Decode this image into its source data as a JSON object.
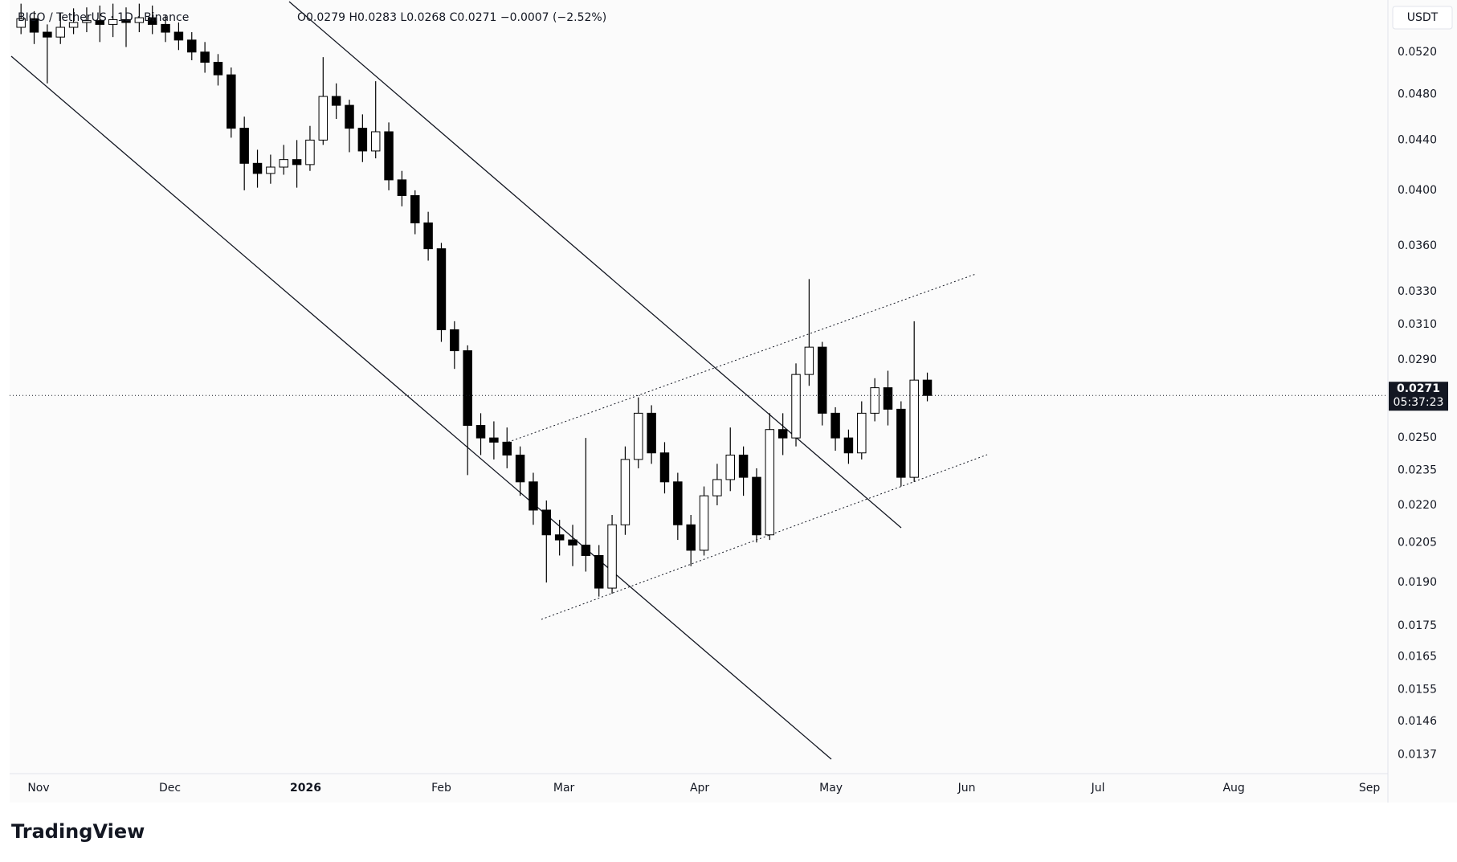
{
  "chart_data": {
    "type": "candlestick",
    "title": "BICO / TetherUS · 1D · Binance",
    "ohlc_text": "O0.0279 H0.0283 L0.0268 C0.0271 −0.0007 (−2.52%)",
    "currency": "USDT",
    "countdown": "05:37:23",
    "brand": "TradingView",
    "log_scale": true,
    "grid": false,
    "up_color": "#ffffff",
    "down_color": "#000000",
    "edge_color": "#000000",
    "x": [
      -4,
      -1,
      2,
      5,
      8,
      11,
      14,
      17,
      20,
      23,
      26,
      29,
      32,
      35,
      38,
      41,
      44,
      47,
      50,
      53,
      56,
      59,
      62,
      65,
      68,
      71,
      74,
      77,
      80,
      83,
      86,
      89,
      92,
      95,
      98,
      101,
      104,
      107,
      110,
      113,
      116,
      119,
      122,
      125,
      128,
      131,
      134,
      137,
      140,
      143,
      146,
      149,
      152,
      155,
      158,
      161,
      164,
      167,
      170,
      173,
      176,
      179,
      182,
      185,
      188,
      191,
      194,
      197,
      200,
      203
    ],
    "open": [
      0.0545,
      0.0554,
      0.054,
      0.0535,
      0.0545,
      0.055,
      0.0552,
      0.0548,
      0.0553,
      0.055,
      0.0555,
      0.0548,
      0.054,
      0.0532,
      0.052,
      0.051,
      0.0498,
      0.045,
      0.0421,
      0.0413,
      0.0418,
      0.0424,
      0.042,
      0.044,
      0.0478,
      0.047,
      0.045,
      0.0431,
      0.0447,
      0.0408,
      0.0396,
      0.0376,
      0.0358,
      0.0307,
      0.0295,
      0.0256,
      0.025,
      0.0248,
      0.0242,
      0.023,
      0.0218,
      0.0208,
      0.0206,
      0.0204,
      0.02,
      0.0188,
      0.0212,
      0.024,
      0.0262,
      0.0243,
      0.023,
      0.0212,
      0.0202,
      0.0224,
      0.0231,
      0.0242,
      0.0232,
      0.0208,
      0.0254,
      0.025,
      0.0282,
      0.0297,
      0.0262,
      0.025,
      0.0243,
      0.0262,
      0.0275,
      0.0264,
      0.0232,
      0.0279
    ],
    "high": [
      0.057,
      0.0562,
      0.0548,
      0.056,
      0.0565,
      0.0566,
      0.0568,
      0.057,
      0.0566,
      0.057,
      0.0568,
      0.0558,
      0.055,
      0.054,
      0.053,
      0.0518,
      0.0505,
      0.046,
      0.0432,
      0.0428,
      0.0436,
      0.044,
      0.0452,
      0.0515,
      0.049,
      0.0475,
      0.0462,
      0.0492,
      0.0455,
      0.0415,
      0.04,
      0.0384,
      0.0362,
      0.0312,
      0.0298,
      0.0262,
      0.0258,
      0.0255,
      0.0246,
      0.0234,
      0.0222,
      0.0214,
      0.0212,
      0.025,
      0.0204,
      0.0216,
      0.0246,
      0.027,
      0.0266,
      0.0248,
      0.0234,
      0.0216,
      0.0228,
      0.0238,
      0.0255,
      0.0246,
      0.0236,
      0.0262,
      0.0262,
      0.0288,
      0.0338,
      0.03,
      0.0265,
      0.0254,
      0.0268,
      0.028,
      0.0284,
      0.0268,
      0.0312,
      0.0283
    ],
    "low": [
      0.0538,
      0.0528,
      0.049,
      0.0528,
      0.0538,
      0.054,
      0.053,
      0.0535,
      0.0525,
      0.054,
      0.0538,
      0.053,
      0.0522,
      0.0512,
      0.05,
      0.0488,
      0.0442,
      0.04,
      0.0402,
      0.0405,
      0.0412,
      0.0402,
      0.0415,
      0.0436,
      0.0458,
      0.043,
      0.0422,
      0.0425,
      0.04,
      0.0388,
      0.0368,
      0.035,
      0.03,
      0.0285,
      0.0233,
      0.0242,
      0.024,
      0.0236,
      0.0224,
      0.0212,
      0.019,
      0.02,
      0.0196,
      0.0194,
      0.0185,
      0.0186,
      0.0208,
      0.0236,
      0.0238,
      0.0225,
      0.0206,
      0.0196,
      0.02,
      0.022,
      0.0226,
      0.0224,
      0.0205,
      0.0206,
      0.0242,
      0.0246,
      0.0276,
      0.0256,
      0.0244,
      0.0238,
      0.024,
      0.0258,
      0.0256,
      0.0228,
      0.023,
      0.0268
    ],
    "close": [
      0.0554,
      0.054,
      0.0535,
      0.0545,
      0.055,
      0.0552,
      0.0548,
      0.0553,
      0.055,
      0.0555,
      0.0548,
      0.054,
      0.0532,
      0.052,
      0.051,
      0.0498,
      0.045,
      0.0421,
      0.0413,
      0.0418,
      0.0424,
      0.042,
      0.044,
      0.0478,
      0.047,
      0.045,
      0.0431,
      0.0447,
      0.0408,
      0.0396,
      0.0376,
      0.0358,
      0.0307,
      0.0295,
      0.0256,
      0.025,
      0.0248,
      0.0242,
      0.023,
      0.0218,
      0.0208,
      0.0206,
      0.0204,
      0.02,
      0.0188,
      0.0212,
      0.024,
      0.0262,
      0.0243,
      0.023,
      0.0212,
      0.0202,
      0.0224,
      0.0231,
      0.0242,
      0.0232,
      0.0208,
      0.0254,
      0.025,
      0.0282,
      0.0297,
      0.0262,
      0.025,
      0.0243,
      0.0262,
      0.0275,
      0.0264,
      0.0232,
      0.0279,
      0.0271
    ],
    "xlim": [
      -6.6,
      308.2
    ],
    "xticks": [
      {
        "value": 0,
        "label": "Nov"
      },
      {
        "value": 30,
        "label": "Dec"
      },
      {
        "value": 61,
        "label": "2026"
      },
      {
        "value": 92,
        "label": "Feb"
      },
      {
        "value": 120,
        "label": "Mar"
      },
      {
        "value": 151,
        "label": "Apr"
      },
      {
        "value": 181,
        "label": "May"
      },
      {
        "value": 212,
        "label": "Jun"
      },
      {
        "value": 242,
        "label": "Jul"
      },
      {
        "value": 273,
        "label": "Aug"
      },
      {
        "value": 304,
        "label": "Sep"
      }
    ],
    "ylim": [
      0.01322,
      0.0574
    ],
    "yticks": [
      {
        "value": 0.052,
        "label": "0.0520"
      },
      {
        "value": 0.048,
        "label": "0.0480"
      },
      {
        "value": 0.044,
        "label": "0.0440"
      },
      {
        "value": 0.04,
        "label": "0.0400"
      },
      {
        "value": 0.036,
        "label": "0.0360"
      },
      {
        "value": 0.033,
        "label": "0.0330"
      },
      {
        "value": 0.031,
        "label": "0.0310"
      },
      {
        "value": 0.029,
        "label": "0.0290"
      },
      {
        "value": 0.025,
        "label": "0.0250"
      },
      {
        "value": 0.0235,
        "label": "0.0235"
      },
      {
        "value": 0.022,
        "label": "0.0220"
      },
      {
        "value": 0.0205,
        "label": "0.0205"
      },
      {
        "value": 0.019,
        "label": "0.0190"
      },
      {
        "value": 0.0175,
        "label": "0.0175"
      },
      {
        "value": 0.0165,
        "label": "0.0165"
      },
      {
        "value": 0.0155,
        "label": "0.0155"
      },
      {
        "value": 0.0146,
        "label": "0.0146"
      },
      {
        "value": 0.0137,
        "label": "0.0137"
      }
    ]
  }
}
